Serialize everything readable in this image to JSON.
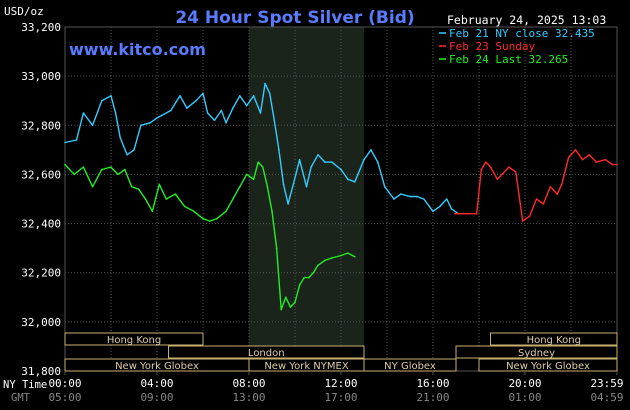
{
  "header": {
    "unit_label": "USD/oz",
    "title": "24 Hour Spot Silver (Bid)",
    "timestamp": "February 24, 2025 13:03",
    "watermark": "www.kitco.com"
  },
  "legend": [
    {
      "text": "Feb 21 NY close 32.435",
      "color": "#33ccff"
    },
    {
      "text": "Feb 23 Sunday",
      "color": "#ff2a2a"
    },
    {
      "text": "Feb 24 Last 32.265",
      "color": "#22ee22"
    }
  ],
  "colors": {
    "background": "#000000",
    "plot_background": "#000000",
    "grid": "#555555",
    "highlight_band": "#1b241b",
    "session_bar_border": "#c8b070",
    "session_bar_text": "#ddccaa",
    "axis_text": "#ffffff",
    "gmt_text": "#888888",
    "title": "#5b7bff",
    "watermark": "#5b7bff"
  },
  "sessions": [
    {
      "label": "Hong Kong",
      "start_hour": 0,
      "end_hour": 6
    },
    {
      "label": "London",
      "start_hour": 4.5,
      "end_hour": 13
    },
    {
      "label": "New York Globex",
      "start_hour": 0,
      "end_hour": 8
    },
    {
      "label": "New York NYMEX",
      "start_hour": 8,
      "end_hour": 13
    },
    {
      "label": "NY Globex",
      "start_hour": 13,
      "end_hour": 17
    },
    {
      "label": "Hong Kong",
      "start_hour": 18.5,
      "end_hour": 24
    },
    {
      "label": "Sydney",
      "start_hour": 17,
      "end_hour": 24
    },
    {
      "label": "New York Globex",
      "start_hour": 18,
      "end_hour": 24
    }
  ],
  "x_axis": {
    "row_labels": [
      "NY Time",
      "GMT"
    ],
    "ny_ticks": [
      "00:00",
      "04:00",
      "08:00",
      "12:00",
      "16:00",
      "20:00",
      "23:59"
    ],
    "gmt_ticks": [
      "05:00",
      "09:00",
      "13:00",
      "17:00",
      "21:00",
      "01:00",
      "04:59"
    ]
  },
  "chart_data": {
    "type": "line",
    "title": "24 Hour Spot Silver (Bid)",
    "ylabel": "USD/oz",
    "xlabel": "NY Time",
    "xlim": [
      0,
      24
    ],
    "ylim": [
      31.8,
      33.2
    ],
    "y_ticks": [
      "33,200",
      "33,000",
      "32,800",
      "32,600",
      "32,400",
      "32,200",
      "32,000",
      "31,800"
    ],
    "y_tick_values": [
      33.2,
      33.0,
      32.8,
      32.6,
      32.4,
      32.2,
      32.0,
      31.8
    ],
    "grid": true,
    "highlight_hours": [
      8,
      13
    ],
    "series": [
      {
        "name": "Feb 21 NY close 32.435",
        "color": "#33ccff",
        "x": [
          0,
          0.5,
          0.8,
          1.2,
          1.6,
          2.0,
          2.2,
          2.4,
          2.7,
          3.0,
          3.3,
          3.7,
          4.0,
          4.2,
          4.6,
          5.0,
          5.3,
          5.7,
          6.0,
          6.2,
          6.5,
          6.8,
          7.0,
          7.3,
          7.6,
          7.9,
          8.2,
          8.5,
          8.7,
          8.9,
          9.1,
          9.3,
          9.5,
          9.7,
          9.9,
          10.2,
          10.5,
          10.7,
          11.0,
          11.3,
          11.6,
          12.0,
          12.3,
          12.6,
          13.0,
          13.3,
          13.6,
          13.9,
          14.3,
          14.6,
          15.0,
          15.3,
          15.6,
          16.0,
          16.3,
          16.6,
          16.8,
          17.1
        ],
        "values": [
          32.73,
          32.74,
          32.85,
          32.8,
          32.9,
          32.92,
          32.85,
          32.75,
          32.68,
          32.7,
          32.8,
          32.81,
          32.83,
          32.84,
          32.86,
          32.92,
          32.87,
          32.9,
          32.93,
          32.85,
          32.82,
          32.86,
          32.81,
          32.87,
          32.92,
          32.88,
          32.92,
          32.85,
          32.97,
          32.93,
          32.82,
          32.7,
          32.56,
          32.48,
          32.55,
          32.66,
          32.55,
          32.63,
          32.68,
          32.65,
          32.65,
          32.62,
          32.58,
          32.57,
          32.66,
          32.7,
          32.65,
          32.55,
          32.5,
          32.52,
          32.51,
          32.51,
          32.5,
          32.45,
          32.47,
          32.5,
          32.46,
          32.44
        ]
      },
      {
        "name": "Feb 23 Sunday",
        "color": "#ff2a2a",
        "x": [
          16.95,
          17.6,
          17.9,
          18.1,
          18.3,
          18.5,
          18.8,
          19.0,
          19.3,
          19.6,
          19.9,
          20.2,
          20.5,
          20.8,
          21.1,
          21.4,
          21.6,
          21.9,
          22.2,
          22.5,
          22.8,
          23.1,
          23.5,
          23.8,
          23.99
        ],
        "values": [
          32.44,
          32.44,
          32.44,
          32.62,
          32.65,
          32.63,
          32.58,
          32.6,
          32.63,
          32.61,
          32.41,
          32.43,
          32.5,
          32.48,
          32.55,
          32.52,
          32.56,
          32.67,
          32.7,
          32.66,
          32.68,
          32.65,
          32.66,
          32.64,
          32.64
        ]
      },
      {
        "name": "Feb 24 Last 32.265",
        "color": "#22ee22",
        "x": [
          0,
          0.4,
          0.8,
          1.2,
          1.6,
          2.0,
          2.3,
          2.6,
          2.9,
          3.2,
          3.5,
          3.8,
          4.1,
          4.4,
          4.8,
          5.2,
          5.6,
          6.0,
          6.3,
          6.6,
          7.0,
          7.3,
          7.6,
          7.9,
          8.2,
          8.4,
          8.6,
          8.8,
          9.0,
          9.2,
          9.4,
          9.6,
          9.8,
          10.0,
          10.2,
          10.4,
          10.6,
          10.8,
          11.0,
          11.3,
          11.6,
          12.0,
          12.3,
          12.6
        ],
        "values": [
          32.64,
          32.6,
          32.63,
          32.55,
          32.62,
          32.63,
          32.6,
          32.62,
          32.55,
          32.54,
          32.5,
          32.45,
          32.56,
          32.5,
          32.52,
          32.47,
          32.45,
          32.42,
          32.41,
          32.42,
          32.45,
          32.5,
          32.55,
          32.6,
          32.58,
          32.65,
          32.63,
          32.55,
          32.45,
          32.3,
          32.05,
          32.1,
          32.06,
          32.08,
          32.15,
          32.18,
          32.18,
          32.2,
          32.23,
          32.25,
          32.26,
          32.27,
          32.28,
          32.265
        ]
      }
    ]
  }
}
